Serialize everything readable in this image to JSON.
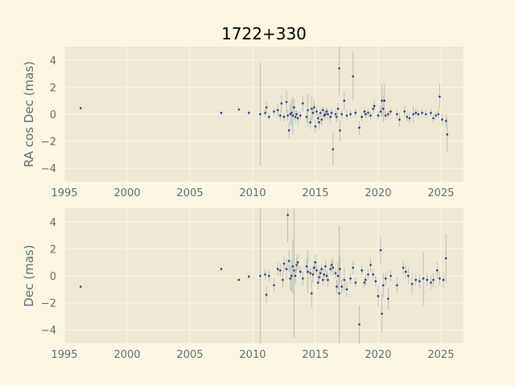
{
  "chart_data": [
    {
      "type": "scatter",
      "title": "1722+330",
      "xlabel": "",
      "ylabel": "RA cos Dec (mas)",
      "xlim": [
        1995,
        2026.8
      ],
      "ylim": [
        -5,
        5
      ],
      "xticks": [
        "1995",
        "2000",
        "2005",
        "2010",
        "2015",
        "2020",
        "2025"
      ],
      "yticks": [
        "−4",
        "−2",
        "0",
        "2",
        "4"
      ],
      "grid": true,
      "points": [
        [
          1996.3,
          0.45,
          0
        ],
        [
          2007.5,
          0.1,
          0
        ],
        [
          2008.9,
          0.35,
          0
        ],
        [
          2009.7,
          0.1,
          0.15
        ],
        [
          2010.6,
          0.0,
          3.8
        ],
        [
          2011.0,
          0.1,
          0.3
        ],
        [
          2011.1,
          0.5,
          0.4
        ],
        [
          2011.3,
          -0.2,
          0.3
        ],
        [
          2011.7,
          0.2,
          0.3
        ],
        [
          2012.0,
          0.3,
          0.5
        ],
        [
          2012.2,
          -0.1,
          0.4
        ],
        [
          2012.3,
          0.8,
          0.6
        ],
        [
          2012.5,
          -0.2,
          0.3
        ],
        [
          2012.7,
          0.9,
          0.8
        ],
        [
          2012.8,
          -0.1,
          0.4
        ],
        [
          2012.9,
          -1.2,
          0.6
        ],
        [
          2013.0,
          0.0,
          0.8
        ],
        [
          2013.1,
          0.1,
          1.0
        ],
        [
          2013.2,
          -0.1,
          1.4
        ],
        [
          2013.3,
          0.5,
          0.6
        ],
        [
          2013.4,
          -0.2,
          0.5
        ],
        [
          2013.5,
          0.0,
          0.3
        ],
        [
          2013.6,
          -0.3,
          0.5
        ],
        [
          2013.8,
          -0.1,
          0.3
        ],
        [
          2014.0,
          0.8,
          0.6
        ],
        [
          2014.3,
          -0.2,
          0.4
        ],
        [
          2014.4,
          0.3,
          1.2
        ],
        [
          2014.6,
          -0.6,
          0.5
        ],
        [
          2014.7,
          0.4,
          0.9
        ],
        [
          2014.8,
          0.1,
          0.4
        ],
        [
          2014.9,
          0.5,
          0.5
        ],
        [
          2015.0,
          -0.9,
          0.5
        ],
        [
          2015.1,
          0.2,
          0.3
        ],
        [
          2015.2,
          -0.3,
          0.4
        ],
        [
          2015.3,
          -0.6,
          0.5
        ],
        [
          2015.4,
          0.1,
          0.3
        ],
        [
          2015.5,
          -0.4,
          0.4
        ],
        [
          2015.6,
          0.3,
          0.3
        ],
        [
          2015.7,
          -0.1,
          0.3
        ],
        [
          2015.8,
          0.0,
          0.3
        ],
        [
          2015.9,
          0.2,
          0.3
        ],
        [
          2016.0,
          0.0,
          0.4
        ],
        [
          2016.2,
          -0.2,
          0.4
        ],
        [
          2016.3,
          0.1,
          0.3
        ],
        [
          2016.4,
          -2.6,
          1.2
        ],
        [
          2016.6,
          0.0,
          0.3
        ],
        [
          2016.7,
          -0.2,
          0.4
        ],
        [
          2016.8,
          0.4,
          0.4
        ],
        [
          2016.9,
          3.4,
          2.0
        ],
        [
          2016.95,
          -1.2,
          0.8
        ],
        [
          2017.1,
          0.0,
          0.3
        ],
        [
          2017.3,
          1.0,
          0.7
        ],
        [
          2017.5,
          -0.1,
          0.4
        ],
        [
          2017.8,
          0.0,
          0.3
        ],
        [
          2018.0,
          2.8,
          1.8
        ],
        [
          2018.2,
          0.1,
          0.3
        ],
        [
          2018.5,
          -1.0,
          0.5
        ],
        [
          2018.7,
          -0.2,
          0.3
        ],
        [
          2018.9,
          0.2,
          0.3
        ],
        [
          2019.0,
          0.0,
          0.3
        ],
        [
          2019.2,
          0.1,
          0.3
        ],
        [
          2019.4,
          -0.1,
          0.3
        ],
        [
          2019.6,
          0.4,
          0.4
        ],
        [
          2019.7,
          0.6,
          0.4
        ],
        [
          2020.0,
          -0.1,
          0.3
        ],
        [
          2020.2,
          0.2,
          0.4
        ],
        [
          2020.3,
          1.0,
          1.2
        ],
        [
          2020.4,
          0.4,
          1.0
        ],
        [
          2020.5,
          1.0,
          1.2
        ],
        [
          2020.6,
          -0.1,
          0.4
        ],
        [
          2020.8,
          0.0,
          0.3
        ],
        [
          2021.0,
          0.2,
          0.3
        ],
        [
          2021.5,
          0.0,
          0.3
        ],
        [
          2021.7,
          -0.4,
          0.5
        ],
        [
          2022.1,
          0.2,
          0.4
        ],
        [
          2022.3,
          -0.2,
          0.3
        ],
        [
          2022.5,
          -0.3,
          0.4
        ],
        [
          2022.8,
          0.0,
          0.6
        ],
        [
          2023.0,
          0.1,
          0.3
        ],
        [
          2023.2,
          0.0,
          0.3
        ],
        [
          2023.5,
          0.1,
          0.3
        ],
        [
          2023.8,
          0.0,
          0.3
        ],
        [
          2024.2,
          0.1,
          0.3
        ],
        [
          2024.4,
          -0.3,
          0.3
        ],
        [
          2024.6,
          -0.1,
          0.3
        ],
        [
          2024.8,
          0.0,
          0.3
        ],
        [
          2024.9,
          1.3,
          0.9
        ],
        [
          2025.1,
          -0.4,
          0.4
        ],
        [
          2025.4,
          -0.5,
          0.5
        ],
        [
          2025.5,
          -1.5,
          1.3
        ]
      ]
    },
    {
      "type": "scatter",
      "title": "",
      "xlabel": "",
      "ylabel": "Dec (mas)",
      "xlim": [
        1995,
        2026.8
      ],
      "ylim": [
        -5,
        5
      ],
      "xticks": [
        "1995",
        "2000",
        "2005",
        "2010",
        "2015",
        "2020",
        "2025"
      ],
      "yticks": [
        "−4",
        "−2",
        "0",
        "2",
        "4"
      ],
      "grid": true,
      "points": [
        [
          1996.3,
          -0.8,
          0
        ],
        [
          2007.5,
          0.5,
          0
        ],
        [
          2008.9,
          -0.3,
          0
        ],
        [
          2009.7,
          -0.05,
          0.15
        ],
        [
          2010.6,
          0.0,
          5.0
        ],
        [
          2011.0,
          0.1,
          0.4
        ],
        [
          2011.1,
          -1.4,
          0.6
        ],
        [
          2011.3,
          0.0,
          0.4
        ],
        [
          2011.7,
          -0.7,
          0.5
        ],
        [
          2012.0,
          0.5,
          0.5
        ],
        [
          2012.2,
          0.4,
          0.5
        ],
        [
          2012.4,
          -0.3,
          0.6
        ],
        [
          2012.5,
          0.9,
          0.6
        ],
        [
          2012.7,
          0.5,
          0.8
        ],
        [
          2012.8,
          4.5,
          2.0
        ],
        [
          2012.9,
          1.1,
          0.8
        ],
        [
          2013.0,
          -0.2,
          0.9
        ],
        [
          2013.1,
          0.0,
          1.2
        ],
        [
          2013.2,
          0.7,
          2.0
        ],
        [
          2013.3,
          0.4,
          5.0
        ],
        [
          2013.4,
          0.0,
          0.6
        ],
        [
          2013.5,
          0.8,
          0.6
        ],
        [
          2013.6,
          1.0,
          0.6
        ],
        [
          2013.8,
          0.3,
          0.4
        ],
        [
          2014.0,
          -0.2,
          0.5
        ],
        [
          2014.3,
          0.7,
          0.6
        ],
        [
          2014.4,
          0.3,
          1.6
        ],
        [
          2014.6,
          0.2,
          0.5
        ],
        [
          2014.7,
          -1.3,
          1.0
        ],
        [
          2014.8,
          0.1,
          0.6
        ],
        [
          2014.9,
          0.6,
          0.5
        ],
        [
          2015.0,
          1.0,
          0.6
        ],
        [
          2015.1,
          0.4,
          0.4
        ],
        [
          2015.2,
          -0.5,
          0.5
        ],
        [
          2015.3,
          -0.1,
          0.5
        ],
        [
          2015.4,
          0.2,
          0.4
        ],
        [
          2015.5,
          0.5,
          0.4
        ],
        [
          2015.6,
          -0.3,
          0.4
        ],
        [
          2015.7,
          0.1,
          0.4
        ],
        [
          2015.8,
          0.7,
          0.4
        ],
        [
          2015.9,
          0.0,
          0.4
        ],
        [
          2016.0,
          -0.3,
          0.5
        ],
        [
          2016.2,
          0.5,
          0.4
        ],
        [
          2016.3,
          0.8,
          0.5
        ],
        [
          2016.4,
          0.6,
          0.6
        ],
        [
          2016.6,
          0.2,
          0.4
        ],
        [
          2016.7,
          -0.8,
          0.5
        ],
        [
          2016.8,
          0.0,
          1.0
        ],
        [
          2016.9,
          -1.3,
          5.0
        ],
        [
          2016.95,
          0.5,
          1.0
        ],
        [
          2017.1,
          -0.8,
          0.5
        ],
        [
          2017.3,
          -0.3,
          0.9
        ],
        [
          2017.5,
          -1.0,
          0.6
        ],
        [
          2017.8,
          -0.2,
          0.4
        ],
        [
          2018.0,
          0.6,
          0.5
        ],
        [
          2018.2,
          -0.5,
          0.4
        ],
        [
          2018.5,
          -3.6,
          1.4
        ],
        [
          2018.7,
          0.4,
          0.4
        ],
        [
          2018.9,
          -0.5,
          0.4
        ],
        [
          2019.0,
          -0.3,
          0.4
        ],
        [
          2019.2,
          0.1,
          0.4
        ],
        [
          2019.4,
          0.8,
          0.5
        ],
        [
          2019.6,
          0.1,
          0.4
        ],
        [
          2019.8,
          -0.4,
          0.4
        ],
        [
          2020.0,
          -1.5,
          0.8
        ],
        [
          2020.2,
          1.9,
          1.0
        ],
        [
          2020.3,
          -2.8,
          1.4
        ],
        [
          2020.4,
          -0.7,
          0.9
        ],
        [
          2020.6,
          -0.2,
          0.5
        ],
        [
          2020.8,
          -1.7,
          0.8
        ],
        [
          2021.0,
          0.0,
          0.4
        ],
        [
          2021.5,
          -0.7,
          0.6
        ],
        [
          2022.0,
          0.6,
          0.5
        ],
        [
          2022.2,
          0.3,
          0.5
        ],
        [
          2022.4,
          0.0,
          0.6
        ],
        [
          2022.7,
          -0.6,
          0.8
        ],
        [
          2023.0,
          -0.3,
          0.5
        ],
        [
          2023.3,
          -0.4,
          0.5
        ],
        [
          2023.6,
          -0.2,
          2.0
        ],
        [
          2023.9,
          -0.3,
          0.5
        ],
        [
          2024.2,
          -0.5,
          0.5
        ],
        [
          2024.4,
          -0.3,
          0.5
        ],
        [
          2024.7,
          0.4,
          0.6
        ],
        [
          2024.9,
          -0.2,
          0.5
        ],
        [
          2025.2,
          -0.3,
          0.6
        ],
        [
          2025.4,
          1.3,
          1.8
        ]
      ]
    }
  ]
}
